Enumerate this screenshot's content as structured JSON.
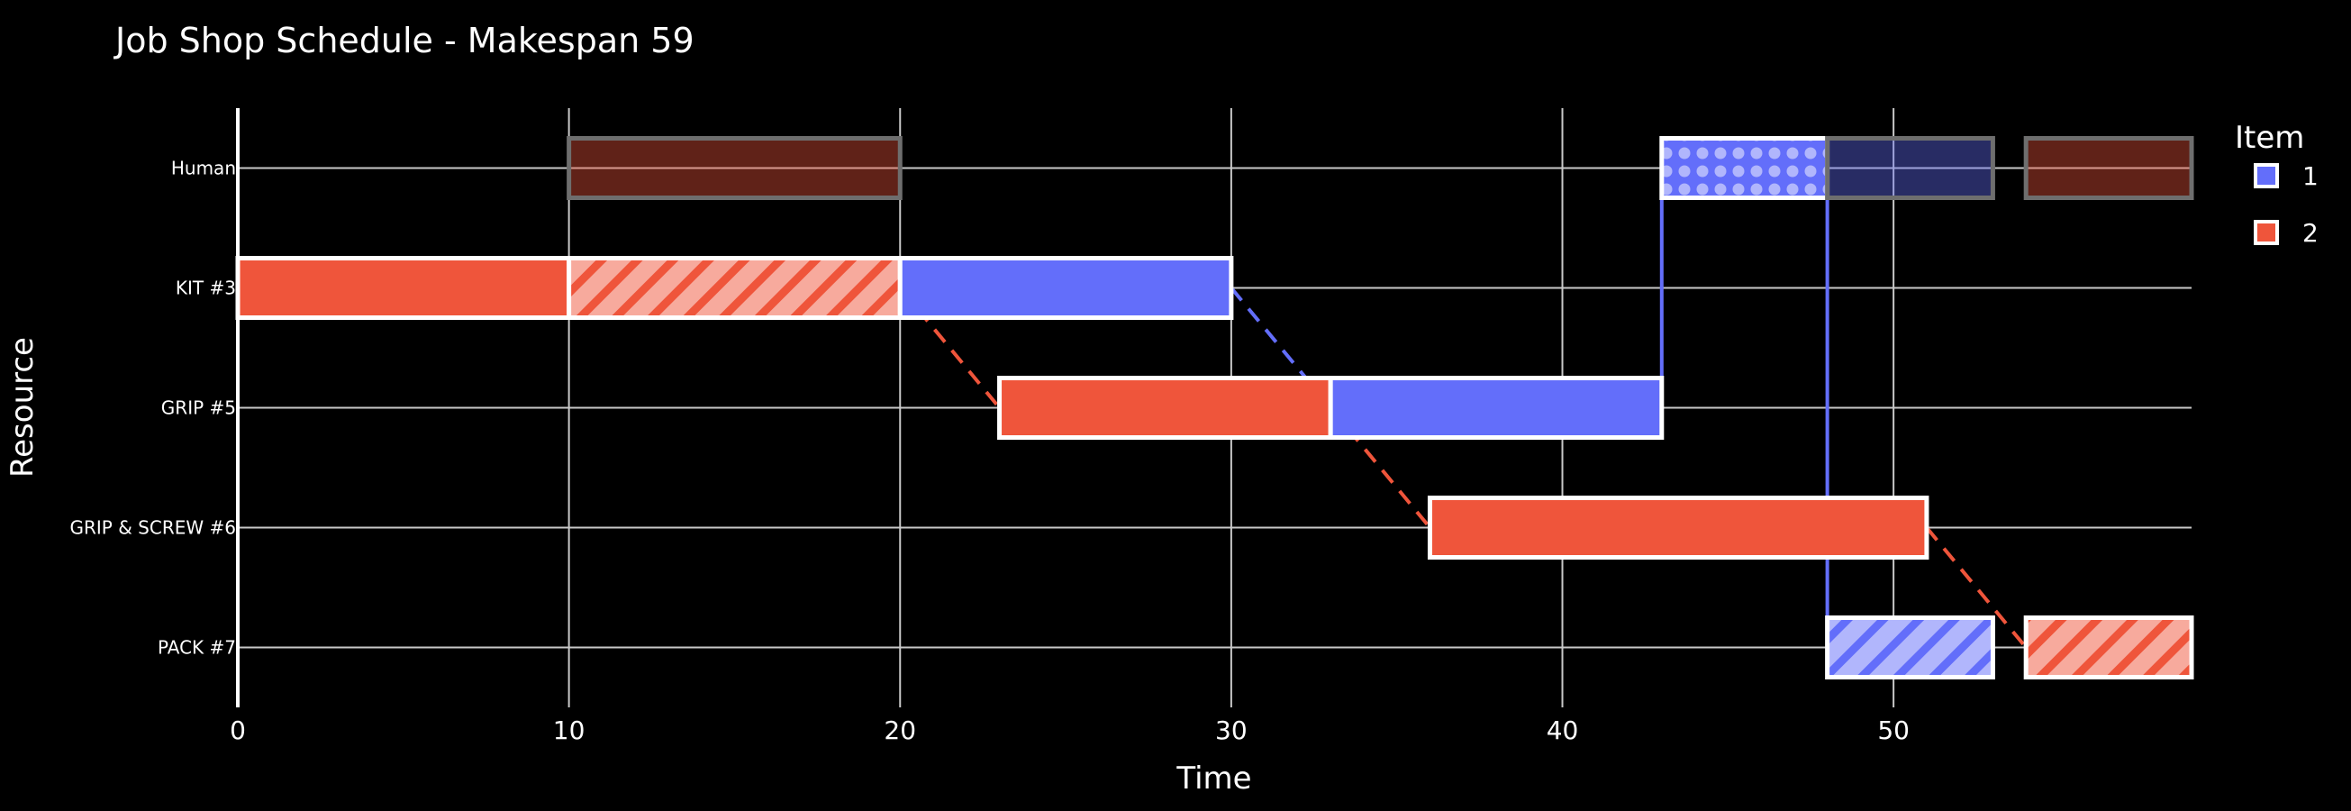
{
  "chart_data": {
    "type": "gantt",
    "title": "Job Shop Schedule - Makespan 59",
    "xlabel": "Time",
    "ylabel": "Resource",
    "xlim": [
      0,
      59
    ],
    "x_ticks": [
      0,
      10,
      20,
      30,
      40,
      50
    ],
    "resources": [
      "Human",
      "KIT #3",
      "GRIP #5",
      "GRIP & SCREW #6",
      "PACK #7"
    ],
    "legend": {
      "title": "Item",
      "position": "top-right",
      "entries": [
        {
          "name": "1",
          "color": "#636EFA"
        },
        {
          "name": "2",
          "color": "#EF553B"
        }
      ]
    },
    "grid": true,
    "tasks": [
      {
        "item": "2",
        "resource": "Human",
        "start": 10,
        "end": 20,
        "style": "faded"
      },
      {
        "item": "1",
        "resource": "Human",
        "start": 43,
        "end": 48,
        "style": "dots"
      },
      {
        "item": "1",
        "resource": "Human",
        "start": 48,
        "end": 53,
        "style": "faded"
      },
      {
        "item": "2",
        "resource": "Human",
        "start": 54,
        "end": 59,
        "style": "faded"
      },
      {
        "item": "2",
        "resource": "KIT #3",
        "start": 0,
        "end": 10,
        "style": "solid"
      },
      {
        "item": "2",
        "resource": "KIT #3",
        "start": 10,
        "end": 20,
        "style": "hatch"
      },
      {
        "item": "1",
        "resource": "KIT #3",
        "start": 20,
        "end": 30,
        "style": "solid"
      },
      {
        "item": "2",
        "resource": "GRIP #5",
        "start": 23,
        "end": 33,
        "style": "solid"
      },
      {
        "item": "1",
        "resource": "GRIP #5",
        "start": 33,
        "end": 43,
        "style": "solid"
      },
      {
        "item": "2",
        "resource": "GRIP & SCREW #6",
        "start": 36,
        "end": 51,
        "style": "solid"
      },
      {
        "item": "1",
        "resource": "PACK #7",
        "start": 48,
        "end": 53,
        "style": "hatch"
      },
      {
        "item": "2",
        "resource": "PACK #7",
        "start": 54,
        "end": 59,
        "style": "hatch"
      }
    ],
    "links": [
      {
        "item": "2",
        "style": "dashed",
        "from": {
          "resource": "KIT #3",
          "t": 20
        },
        "to": {
          "resource": "GRIP #5",
          "t": 23
        }
      },
      {
        "item": "1",
        "style": "dashed",
        "from": {
          "resource": "KIT #3",
          "t": 30
        },
        "to": {
          "resource": "GRIP #5",
          "t": 33
        }
      },
      {
        "item": "2",
        "style": "dashed",
        "from": {
          "resource": "GRIP #5",
          "t": 33
        },
        "to": {
          "resource": "GRIP & SCREW #6",
          "t": 36
        }
      },
      {
        "item": "2",
        "style": "dashed",
        "from": {
          "resource": "GRIP & SCREW #6",
          "t": 51
        },
        "to": {
          "resource": "PACK #7",
          "t": 54
        }
      },
      {
        "item": "1",
        "style": "solid",
        "from": {
          "resource": "GRIP #5",
          "t": 43
        },
        "to": {
          "resource": "Human",
          "t": 43
        }
      },
      {
        "item": "1",
        "style": "solid",
        "from": {
          "resource": "Human",
          "t": 48
        },
        "to": {
          "resource": "PACK #7",
          "t": 48
        }
      }
    ]
  }
}
